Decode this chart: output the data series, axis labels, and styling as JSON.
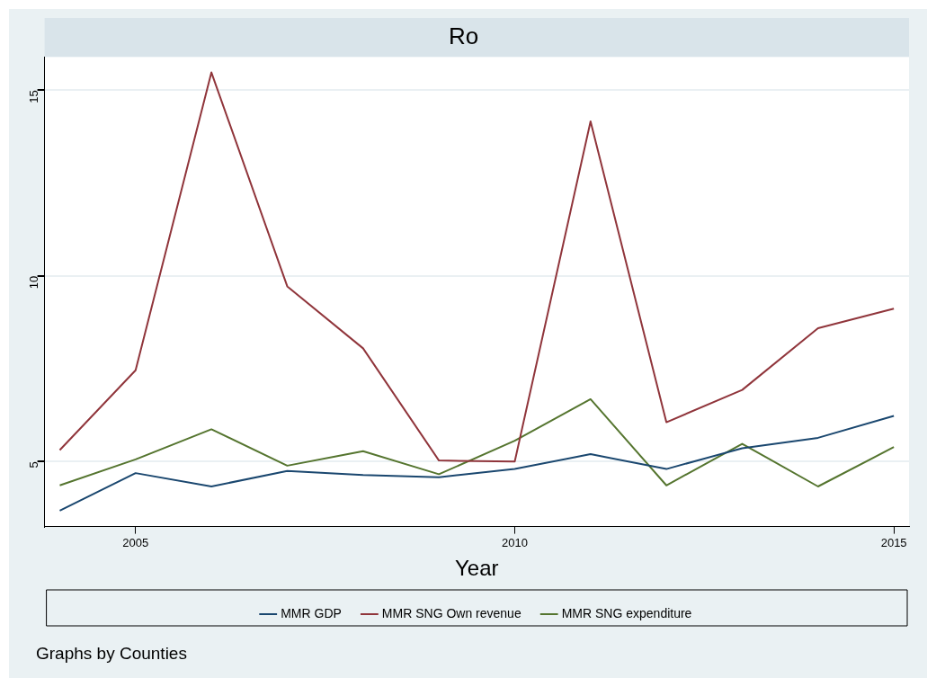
{
  "chart_data": {
    "type": "line",
    "title": "Ro",
    "xlabel": "Year",
    "x": [
      2004,
      2005,
      2006,
      2007,
      2008,
      2009,
      2010,
      2011,
      2012,
      2013,
      2014,
      2015
    ],
    "series": [
      {
        "name": "MMR GDP",
        "color": "#1a476f",
        "values": [
          3.68,
          4.69,
          4.33,
          4.75,
          4.64,
          4.58,
          4.8,
          5.2,
          4.8,
          5.36,
          5.64,
          6.23
        ]
      },
      {
        "name": "MMR SNG Own revenue",
        "color": "#90353b",
        "values": [
          5.31,
          7.46,
          15.48,
          9.72,
          8.05,
          5.03,
          5.0,
          14.16,
          6.06,
          6.93,
          8.59,
          9.12
        ]
      },
      {
        "name": "MMR SNG expenditure",
        "color": "#55752f",
        "values": [
          4.36,
          5.06,
          5.87,
          4.89,
          5.28,
          4.66,
          5.56,
          6.68,
          4.36,
          5.48,
          4.33,
          5.39
        ]
      }
    ],
    "xlim": [
      2003.8,
      2015.2
    ],
    "xticks": [
      2005,
      2010,
      2015
    ],
    "ylim": [
      3.25,
      15.9
    ],
    "yticks": [
      5,
      10,
      15
    ],
    "grid": "y",
    "legend": "bottom",
    "marker": "none",
    "line_style": "solid",
    "annotations": [
      "Graphs by Counties"
    ]
  }
}
